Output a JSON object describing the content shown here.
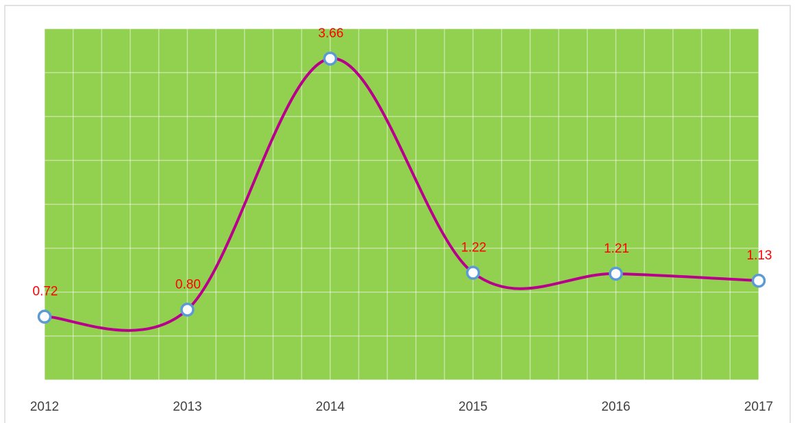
{
  "chart_data": {
    "type": "line",
    "categories": [
      "2012",
      "2013",
      "2014",
      "2015",
      "2016",
      "2017"
    ],
    "series": [
      {
        "color": "#b8008c",
        "values": [
          0.72,
          0.8,
          3.66,
          1.22,
          1.21,
          1.13
        ],
        "value_labels": [
          "0.72",
          "0.80",
          "3.66",
          "1.22",
          "1.21",
          "1.13"
        ]
      }
    ],
    "ylim": [
      0,
      4
    ],
    "yticks": [
      0,
      0.5,
      1,
      1.5,
      2,
      2.5,
      3,
      3.5,
      4
    ],
    "grid": true,
    "smooth": true,
    "plot_color": "#92d050",
    "marker_color": "#5b9bd5",
    "label_color": "#ff0000"
  }
}
